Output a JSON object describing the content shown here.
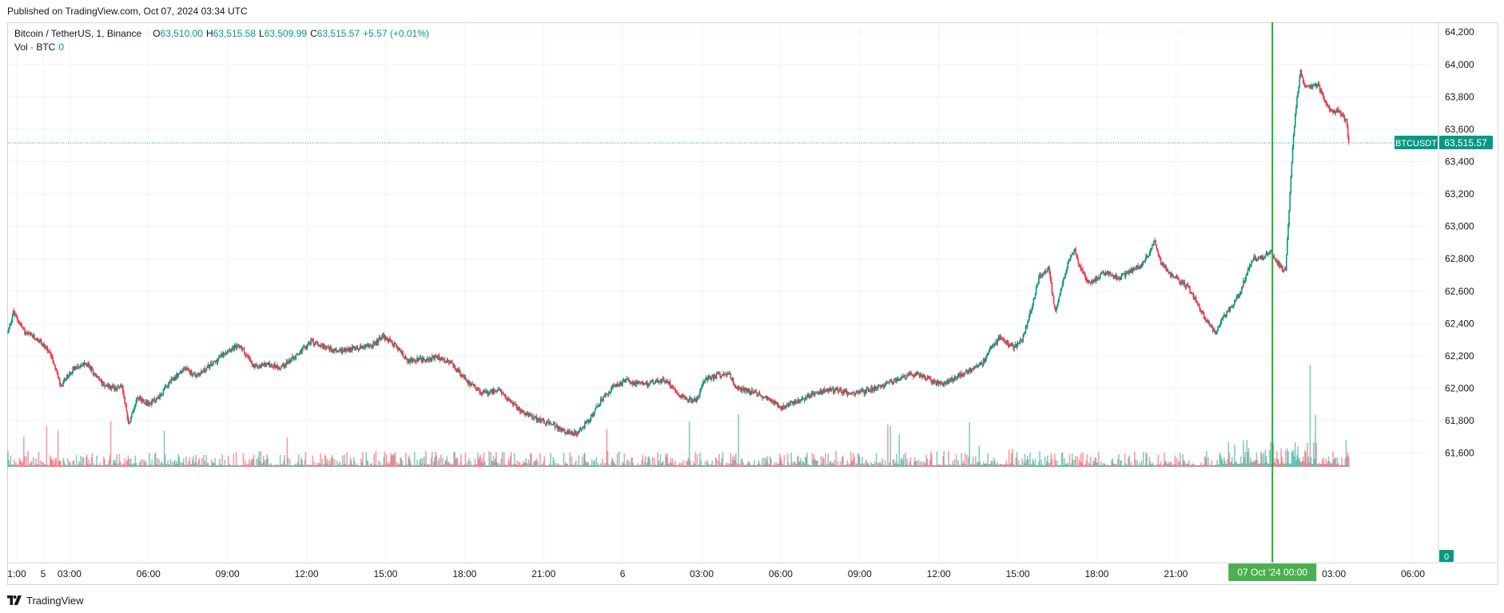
{
  "header": {
    "published": "Published on TradingView.com, Oct 07, 2024 03:34 UTC"
  },
  "legend": {
    "symbol": "Bitcoin / TetherUS, 1, Binance",
    "open_label": "O",
    "open": "63,510.00",
    "high_label": "H",
    "high": "63,515.58",
    "low_label": "L",
    "low": "63,509.99",
    "close_label": "C",
    "close": "63,515.57",
    "change": "+5.57 (+0.01%)",
    "volume_label": "Vol · BTC",
    "volume": "0"
  },
  "price_tag": {
    "symbol": "BTCUSDT",
    "value": "63,515.57"
  },
  "volume_tag": "0",
  "footer": {
    "brand": "TradingView"
  },
  "colors": {
    "up": "#089981",
    "down": "#f23645",
    "grid": "#f0f3fa",
    "crosshair": "#22ab2e",
    "crosshair_label_bg": "#4caf50"
  },
  "chart_data": {
    "type": "candlestick",
    "symbol": "BTCUSDT",
    "interval": "1",
    "ylim": [
      61490,
      64260
    ],
    "y_ticks": [
      61600,
      61800,
      62000,
      62200,
      62400,
      62600,
      62800,
      63000,
      63200,
      63400,
      63600,
      63800,
      64000,
      64200
    ],
    "x_ticks": [
      {
        "t": 60,
        "label": "1:00"
      },
      {
        "t": 120,
        "label": "5"
      },
      {
        "t": 180,
        "label": "03:00"
      },
      {
        "t": 360,
        "label": "06:00"
      },
      {
        "t": 540,
        "label": "09:00"
      },
      {
        "t": 720,
        "label": "12:00"
      },
      {
        "t": 900,
        "label": "15:00"
      },
      {
        "t": 1080,
        "label": "18:00"
      },
      {
        "t": 1260,
        "label": "21:00"
      },
      {
        "t": 1440,
        "label": "6"
      },
      {
        "t": 1620,
        "label": "03:00"
      },
      {
        "t": 1800,
        "label": "06:00"
      },
      {
        "t": 1980,
        "label": "09:00"
      },
      {
        "t": 2160,
        "label": "12:00"
      },
      {
        "t": 2340,
        "label": "15:00"
      },
      {
        "t": 2520,
        "label": "18:00"
      },
      {
        "t": 2700,
        "label": "21:00"
      },
      {
        "t": 3060,
        "label": "03:00"
      },
      {
        "t": 3240,
        "label": "06:00"
      }
    ],
    "x_range": [
      40,
      3280
    ],
    "data_end": 3094,
    "crosshair": {
      "t": 2920,
      "label": "07 Oct '24   00:00"
    },
    "last_price": 63515.57,
    "path_keypoints": [
      [
        40,
        62350
      ],
      [
        52,
        62470
      ],
      [
        80,
        62340
      ],
      [
        110,
        62300
      ],
      [
        140,
        62200
      ],
      [
        160,
        62010
      ],
      [
        190,
        62130
      ],
      [
        220,
        62150
      ],
      [
        250,
        62040
      ],
      [
        280,
        62000
      ],
      [
        300,
        62010
      ],
      [
        315,
        61780
      ],
      [
        335,
        61950
      ],
      [
        360,
        61900
      ],
      [
        385,
        61950
      ],
      [
        410,
        62040
      ],
      [
        440,
        62120
      ],
      [
        470,
        62080
      ],
      [
        510,
        62160
      ],
      [
        540,
        62240
      ],
      [
        570,
        62260
      ],
      [
        600,
        62130
      ],
      [
        630,
        62150
      ],
      [
        660,
        62130
      ],
      [
        700,
        62210
      ],
      [
        730,
        62290
      ],
      [
        760,
        62260
      ],
      [
        790,
        62230
      ],
      [
        830,
        62250
      ],
      [
        865,
        62260
      ],
      [
        895,
        62320
      ],
      [
        920,
        62270
      ],
      [
        950,
        62170
      ],
      [
        990,
        62180
      ],
      [
        1020,
        62190
      ],
      [
        1050,
        62150
      ],
      [
        1080,
        62060
      ],
      [
        1110,
        61990
      ],
      [
        1130,
        61970
      ],
      [
        1160,
        61990
      ],
      [
        1190,
        61900
      ],
      [
        1220,
        61840
      ],
      [
        1260,
        61800
      ],
      [
        1290,
        61760
      ],
      [
        1320,
        61720
      ],
      [
        1340,
        61730
      ],
      [
        1370,
        61830
      ],
      [
        1390,
        61920
      ],
      [
        1420,
        62010
      ],
      [
        1450,
        62050
      ],
      [
        1480,
        62020
      ],
      [
        1510,
        62040
      ],
      [
        1540,
        62050
      ],
      [
        1570,
        61960
      ],
      [
        1590,
        61930
      ],
      [
        1610,
        61930
      ],
      [
        1625,
        62050
      ],
      [
        1655,
        62080
      ],
      [
        1680,
        62100
      ],
      [
        1700,
        62000
      ],
      [
        1720,
        61990
      ],
      [
        1750,
        61960
      ],
      [
        1780,
        61930
      ],
      [
        1800,
        61880
      ],
      [
        1820,
        61910
      ],
      [
        1850,
        61930
      ],
      [
        1870,
        61960
      ],
      [
        1900,
        61990
      ],
      [
        1930,
        61990
      ],
      [
        1960,
        61970
      ],
      [
        1990,
        61980
      ],
      [
        2020,
        62010
      ],
      [
        2050,
        62040
      ],
      [
        2080,
        62070
      ],
      [
        2110,
        62090
      ],
      [
        2140,
        62050
      ],
      [
        2170,
        62020
      ],
      [
        2200,
        62070
      ],
      [
        2230,
        62110
      ],
      [
        2260,
        62160
      ],
      [
        2280,
        62250
      ],
      [
        2300,
        62320
      ],
      [
        2330,
        62250
      ],
      [
        2350,
        62300
      ],
      [
        2370,
        62480
      ],
      [
        2390,
        62700
      ],
      [
        2410,
        62740
      ],
      [
        2425,
        62480
      ],
      [
        2440,
        62620
      ],
      [
        2455,
        62780
      ],
      [
        2470,
        62860
      ],
      [
        2480,
        62760
      ],
      [
        2500,
        62640
      ],
      [
        2520,
        62680
      ],
      [
        2540,
        62720
      ],
      [
        2570,
        62680
      ],
      [
        2600,
        62730
      ],
      [
        2620,
        62760
      ],
      [
        2640,
        62840
      ],
      [
        2652,
        62920
      ],
      [
        2665,
        62780
      ],
      [
        2690,
        62700
      ],
      [
        2710,
        62660
      ],
      [
        2730,
        62620
      ],
      [
        2750,
        62520
      ],
      [
        2770,
        62420
      ],
      [
        2790,
        62340
      ],
      [
        2805,
        62420
      ],
      [
        2825,
        62500
      ],
      [
        2845,
        62580
      ],
      [
        2860,
        62700
      ],
      [
        2875,
        62800
      ],
      [
        2895,
        62800
      ],
      [
        2915,
        62850
      ],
      [
        2935,
        62760
      ],
      [
        2950,
        62720
      ],
      [
        2958,
        63100
      ],
      [
        2966,
        63500
      ],
      [
        2975,
        63780
      ],
      [
        2984,
        63950
      ],
      [
        2995,
        63860
      ],
      [
        3010,
        63870
      ],
      [
        3025,
        63870
      ],
      [
        3040,
        63780
      ],
      [
        3055,
        63700
      ],
      [
        3070,
        63720
      ],
      [
        3080,
        63680
      ],
      [
        3088,
        63650
      ],
      [
        3094,
        63515.57
      ]
    ]
  }
}
